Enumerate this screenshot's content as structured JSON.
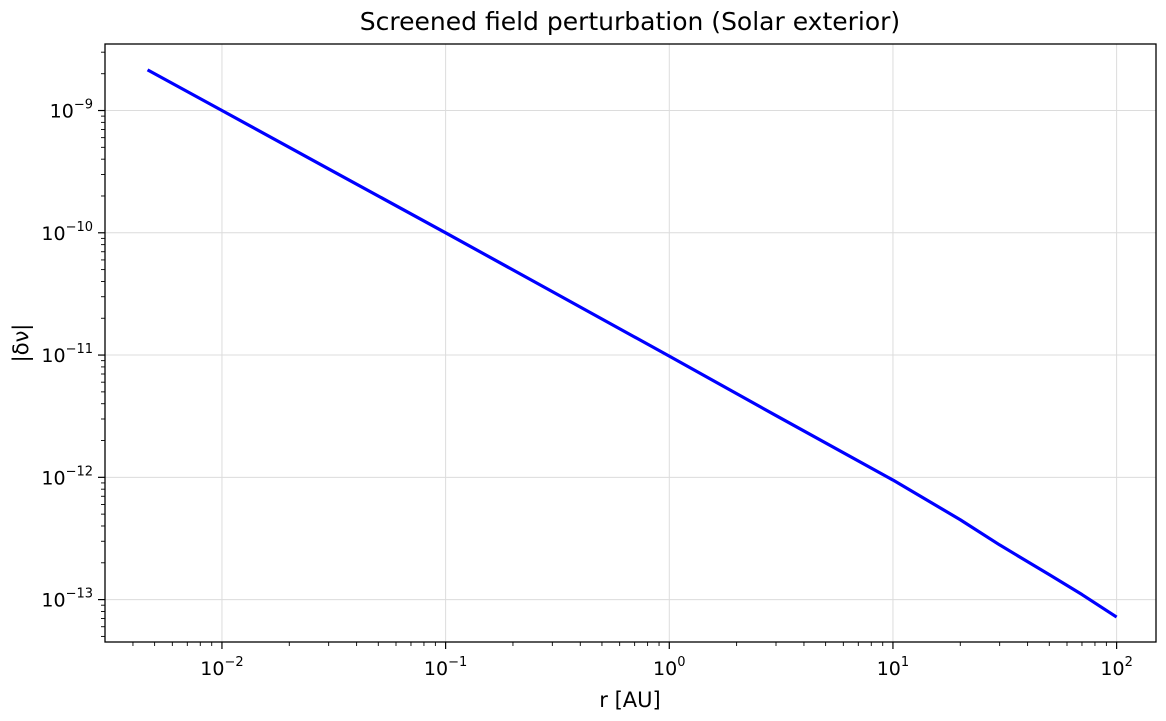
{
  "chart_data": {
    "type": "line",
    "title": "Screened field perturbation (Solar exterior)",
    "xlabel": "r [AU]",
    "ylabel": "|δν|",
    "x_scale": "log",
    "y_scale": "log",
    "xlim": [
      0.003,
      150
    ],
    "ylim": [
      4.5e-14,
      3.5e-09
    ],
    "grid": true,
    "line_color": "#0000ff",
    "x_ticks": [
      {
        "base": "10",
        "exp": "−2",
        "value": 0.01
      },
      {
        "base": "10",
        "exp": "−1",
        "value": 0.1
      },
      {
        "base": "10",
        "exp": "0",
        "value": 1
      },
      {
        "base": "10",
        "exp": "1",
        "value": 10
      },
      {
        "base": "10",
        "exp": "2",
        "value": 100
      }
    ],
    "y_ticks": [
      {
        "base": "10",
        "exp": "−9",
        "value": 1e-09
      },
      {
        "base": "10",
        "exp": "−10",
        "value": 1e-10
      },
      {
        "base": "10",
        "exp": "−11",
        "value": 1e-11
      },
      {
        "base": "10",
        "exp": "−12",
        "value": 1e-12
      },
      {
        "base": "10",
        "exp": "−13",
        "value": 1e-13
      }
    ],
    "series": [
      {
        "x": [
          0.00465,
          0.01,
          0.03,
          0.1,
          0.3,
          1,
          3,
          10,
          20,
          30,
          50,
          70,
          100
        ],
        "y": [
          2.15e-09,
          1e-09,
          3.33e-10,
          1e-10,
          3.3e-11,
          9.8e-12,
          3.2e-12,
          9.5e-13,
          4.5e-13,
          2.8e-13,
          1.6e-13,
          1.1e-13,
          7.2e-14
        ]
      }
    ]
  }
}
